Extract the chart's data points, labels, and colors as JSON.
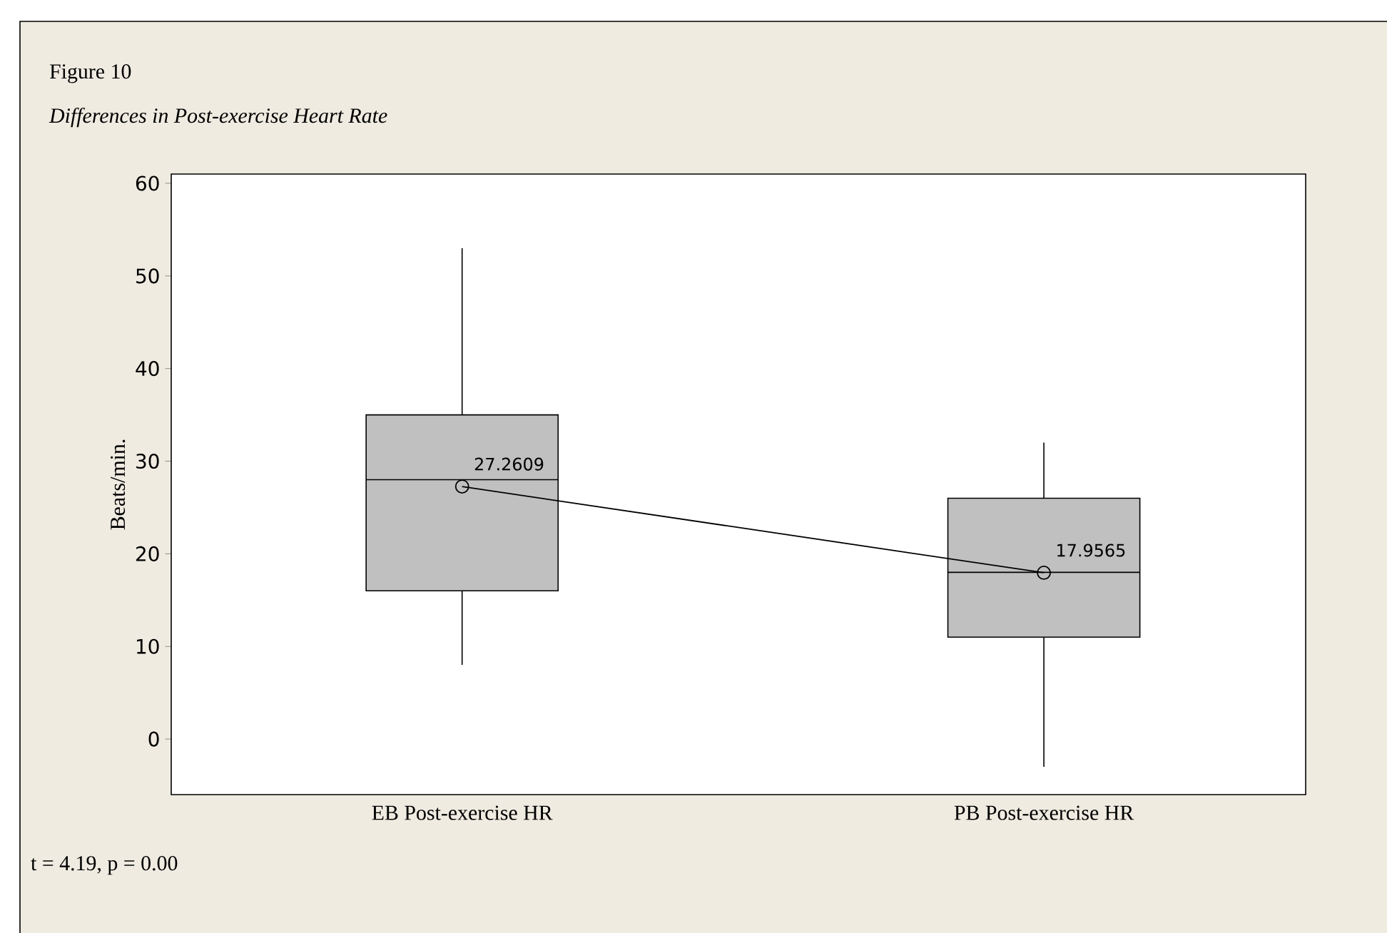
{
  "chart_data": {
    "type": "box",
    "title": "Figure 10",
    "subtitle": "Differences in Post-exercise Heart Rate",
    "ylabel": "Beats/min.",
    "categories": [
      "EB Post-exercise HR",
      "PB Post-exercise HR"
    ],
    "color": "#c0c0c0",
    "boxes": [
      {
        "low": 8,
        "q1": 16,
        "median": 28,
        "q3": 35,
        "high": 53
      },
      {
        "low": -3,
        "q1": 11,
        "median": 18,
        "q3": 26,
        "high": 32
      }
    ],
    "series": [
      {
        "type": "line",
        "color": "#000000",
        "marker": "circle",
        "values": [
          27.2609,
          17.9565
        ],
        "value_labels": [
          "27.2609",
          "17.9565"
        ]
      }
    ],
    "ylim": [
      -6,
      61
    ],
    "yticks": [
      0,
      10,
      20,
      30,
      40,
      50,
      60
    ],
    "annotations": [
      "t = 4.19, p = 0.00"
    ]
  }
}
